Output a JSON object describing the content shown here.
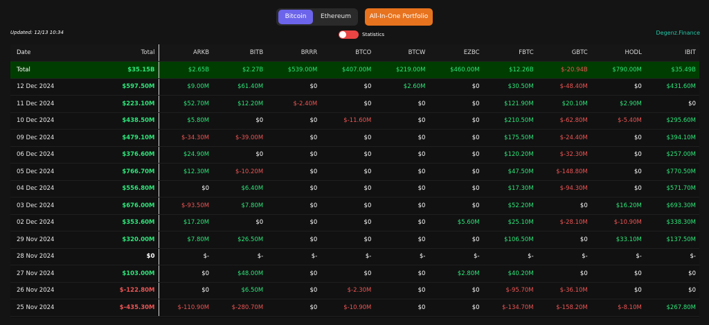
{
  "header": {
    "tabs": [
      {
        "label": "Bitcoin",
        "active": true
      },
      {
        "label": "Ethereum",
        "active": false
      }
    ],
    "portfolio_button": "All-In-One Portfolio",
    "updated": "Updated: 12/13 10:34",
    "statistics_label": "Statistics",
    "brand": "Degenz.Finance"
  },
  "colors": {
    "positive": "#2ee67a",
    "negative": "#ee5555",
    "accent": "#6c64ea",
    "orange": "#e8731e",
    "total_row_bg": "#003d00"
  },
  "table": {
    "columns": [
      "Date",
      "Total",
      "ARKB",
      "BITB",
      "BRRR",
      "BTCO",
      "BTCW",
      "EZBC",
      "FBTC",
      "GBTC",
      "HODL",
      "IBIT"
    ],
    "rows": [
      [
        "Total",
        "$35.15B",
        "$2.65B",
        "$2.27B",
        "$539.00M",
        "$407.00M",
        "$219.00M",
        "$460.00M",
        "$12.26B",
        "$-20.94B",
        "$790.00M",
        "$35.49B"
      ],
      [
        "12 Dec 2024",
        "$597.50M",
        "$9.00M",
        "$61.40M",
        "$0",
        "$0",
        "$2.60M",
        "$0",
        "$30.50M",
        "$-48.40M",
        "$0",
        "$431.60M"
      ],
      [
        "11 Dec 2024",
        "$223.10M",
        "$52.70M",
        "$12.20M",
        "$-2.40M",
        "$0",
        "$0",
        "$0",
        "$121.90M",
        "$20.10M",
        "$2.90M",
        "$0"
      ],
      [
        "10 Dec 2024",
        "$438.50M",
        "$5.80M",
        "$0",
        "$0",
        "$-11.60M",
        "$0",
        "$0",
        "$210.50M",
        "$-62.80M",
        "$-5.40M",
        "$295.60M"
      ],
      [
        "09 Dec 2024",
        "$479.10M",
        "$-34.30M",
        "$-39.00M",
        "$0",
        "$0",
        "$0",
        "$0",
        "$175.50M",
        "$-24.40M",
        "$0",
        "$394.10M"
      ],
      [
        "06 Dec 2024",
        "$376.60M",
        "$24.90M",
        "$0",
        "$0",
        "$0",
        "$0",
        "$0",
        "$120.20M",
        "$-32.30M",
        "$0",
        "$257.00M"
      ],
      [
        "05 Dec 2024",
        "$766.70M",
        "$12.30M",
        "$-10.20M",
        "$0",
        "$0",
        "$0",
        "$0",
        "$47.50M",
        "$-148.80M",
        "$0",
        "$770.50M"
      ],
      [
        "04 Dec 2024",
        "$556.80M",
        "$0",
        "$6.40M",
        "$0",
        "$0",
        "$0",
        "$0",
        "$17.30M",
        "$-94.30M",
        "$0",
        "$571.70M"
      ],
      [
        "03 Dec 2024",
        "$676.00M",
        "$-93.50M",
        "$7.80M",
        "$0",
        "$0",
        "$0",
        "$0",
        "$52.20M",
        "$0",
        "$16.20M",
        "$693.30M"
      ],
      [
        "02 Dec 2024",
        "$353.60M",
        "$17.20M",
        "$0",
        "$0",
        "$0",
        "$0",
        "$5.60M",
        "$25.10M",
        "$-28.10M",
        "$-10.90M",
        "$338.30M"
      ],
      [
        "29 Nov 2024",
        "$320.00M",
        "$7.80M",
        "$26.50M",
        "$0",
        "$0",
        "$0",
        "$0",
        "$106.50M",
        "$0",
        "$33.10M",
        "$137.50M"
      ],
      [
        "28 Nov 2024",
        "$0",
        "$-",
        "$-",
        "$-",
        "$-",
        "$-",
        "$-",
        "$-",
        "$-",
        "$-",
        "$-"
      ],
      [
        "27 Nov 2024",
        "$103.00M",
        "$0",
        "$48.00M",
        "$0",
        "$0",
        "$0",
        "$2.80M",
        "$40.20M",
        "$0",
        "$0",
        "$0"
      ],
      [
        "26 Nov 2024",
        "$-122.80M",
        "$0",
        "$6.50M",
        "$0",
        "$-2.30M",
        "$0",
        "$0",
        "$-95.70M",
        "$-36.10M",
        "$0",
        "$0"
      ],
      [
        "25 Nov 2024",
        "$-435.30M",
        "$-110.90M",
        "$-280.70M",
        "$0",
        "$-10.90M",
        "$0",
        "$0",
        "$-134.70M",
        "$-158.20M",
        "$-8.10M",
        "$267.80M"
      ]
    ]
  }
}
